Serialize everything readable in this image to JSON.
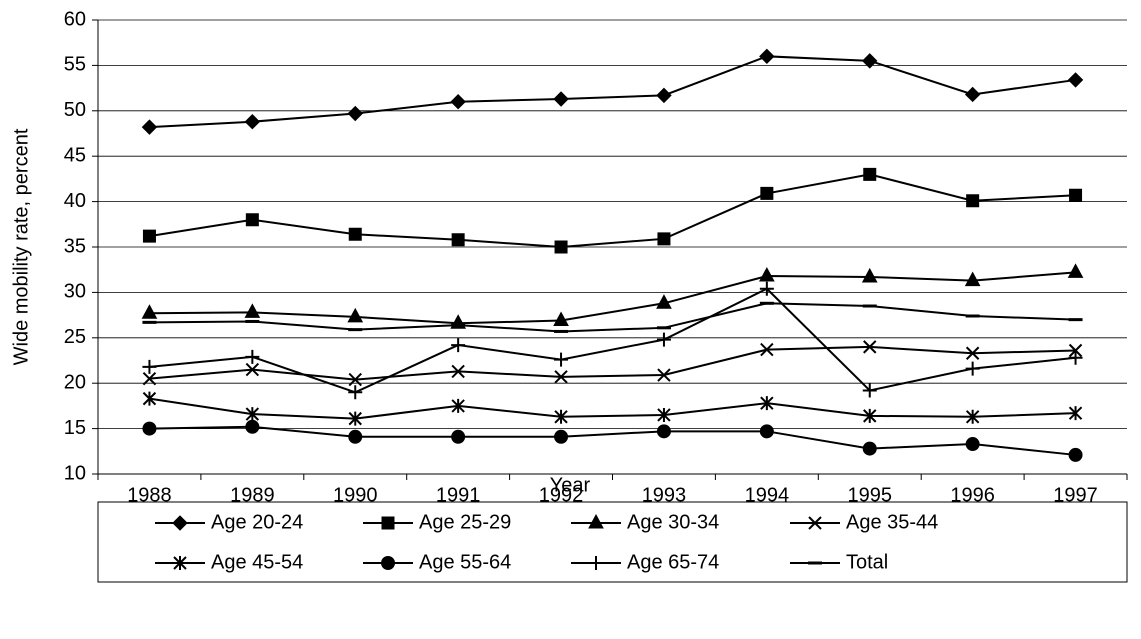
{
  "chart_data": {
    "type": "line",
    "xlabel": "Year",
    "ylabel": "Wide mobility rate, percent",
    "categories": [
      "1988",
      "1989",
      "1990",
      "1991",
      "1992",
      "1993",
      "1994",
      "1995",
      "1996",
      "1997"
    ],
    "ylim": [
      10,
      60
    ],
    "yticks": [
      10,
      15,
      20,
      25,
      30,
      35,
      40,
      45,
      50,
      55,
      60
    ],
    "grid": true,
    "legend": "bottom",
    "series": [
      {
        "name": "Age 20-24",
        "color": "#000000",
        "marker": "diamond",
        "values": [
          48.2,
          48.8,
          49.7,
          51.0,
          51.3,
          51.7,
          56.0,
          55.5,
          51.8,
          53.4
        ]
      },
      {
        "name": "Age 25-29",
        "color": "#000000",
        "marker": "square",
        "values": [
          36.2,
          38.0,
          36.4,
          35.8,
          35.0,
          35.9,
          40.9,
          43.0,
          40.1,
          40.7
        ]
      },
      {
        "name": "Age 30-34",
        "color": "#000000",
        "marker": "triangle",
        "values": [
          27.7,
          27.8,
          27.3,
          26.6,
          26.9,
          28.8,
          31.8,
          31.7,
          31.3,
          32.2
        ]
      },
      {
        "name": "Age 35-44",
        "color": "#000000",
        "marker": "x",
        "values": [
          20.5,
          21.5,
          20.4,
          21.3,
          20.7,
          20.9,
          23.7,
          24.0,
          23.3,
          23.6
        ]
      },
      {
        "name": "Age 45-54",
        "color": "#000000",
        "marker": "asterisk",
        "values": [
          18.3,
          16.6,
          16.1,
          17.5,
          16.3,
          16.5,
          17.8,
          16.4,
          16.3,
          16.7
        ]
      },
      {
        "name": "Age 55-64",
        "color": "#000000",
        "marker": "circle",
        "values": [
          15.0,
          15.2,
          14.1,
          14.1,
          14.1,
          14.7,
          14.7,
          12.8,
          13.3,
          12.1
        ]
      },
      {
        "name": "Age 65-74",
        "color": "#000000",
        "marker": "plus",
        "values": [
          21.8,
          22.9,
          19.0,
          24.2,
          22.6,
          24.8,
          30.4,
          19.2,
          21.6,
          22.8
        ]
      },
      {
        "name": "Total",
        "color": "#000000",
        "marker": "dash",
        "values": [
          26.7,
          26.8,
          25.9,
          26.4,
          25.7,
          26.1,
          28.8,
          28.5,
          27.4,
          27.0
        ]
      }
    ]
  }
}
